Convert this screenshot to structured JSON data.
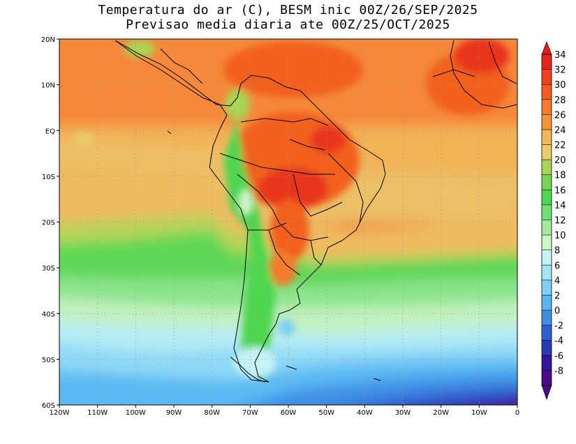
{
  "title": {
    "line1": "Temperatura do ar (C), BESM inic 00Z/26/SEP/2025",
    "line2": "Previsao media diaria ate 00Z/25/OCT/2025"
  },
  "map": {
    "lon_range": [
      -120,
      0
    ],
    "lat_range": [
      -60,
      20
    ],
    "lon_ticks": [
      {
        "value": -120,
        "label": "120W"
      },
      {
        "value": -110,
        "label": "110W"
      },
      {
        "value": -100,
        "label": "100W"
      },
      {
        "value": -90,
        "label": "90W"
      },
      {
        "value": -80,
        "label": "80W"
      },
      {
        "value": -70,
        "label": "70W"
      },
      {
        "value": -60,
        "label": "60W"
      },
      {
        "value": -50,
        "label": "50W"
      },
      {
        "value": -40,
        "label": "40W"
      },
      {
        "value": -30,
        "label": "30W"
      },
      {
        "value": -20,
        "label": "20W"
      },
      {
        "value": -10,
        "label": "10W"
      },
      {
        "value": 0,
        "label": "0"
      }
    ],
    "lat_ticks": [
      {
        "value": 20,
        "label": "20N"
      },
      {
        "value": 10,
        "label": "10N"
      },
      {
        "value": 0,
        "label": "EQ"
      },
      {
        "value": -10,
        "label": "10S"
      },
      {
        "value": -20,
        "label": "20S"
      },
      {
        "value": -30,
        "label": "30S"
      },
      {
        "value": -40,
        "label": "40S"
      },
      {
        "value": -50,
        "label": "50S"
      },
      {
        "value": -60,
        "label": "60S"
      }
    ],
    "grid": "dotted"
  },
  "colorbar": {
    "labels": [
      "34",
      "32",
      "30",
      "28",
      "26",
      "24",
      "22",
      "20",
      "18",
      "16",
      "14",
      "12",
      "10",
      "8",
      "6",
      "4",
      "2",
      "0",
      "-2",
      "-4",
      "-6",
      "-8"
    ],
    "colors": [
      "#e8231c",
      "#f2401c",
      "#f75b1e",
      "#f57a2a",
      "#f79436",
      "#f2b757",
      "#eccb6a",
      "#a8d554",
      "#7bd455",
      "#4fd64f",
      "#72e073",
      "#a3ea9e",
      "#cdf5c6",
      "#c5f3f6",
      "#a8e6f7",
      "#7dd0f6",
      "#57b6f1",
      "#3f8fe6",
      "#3060cf",
      "#2c3bb5",
      "#33189c",
      "#4b0a8a"
    ],
    "top_color": "#e51b1b",
    "bottom_color": "#4a0a8a"
  }
}
